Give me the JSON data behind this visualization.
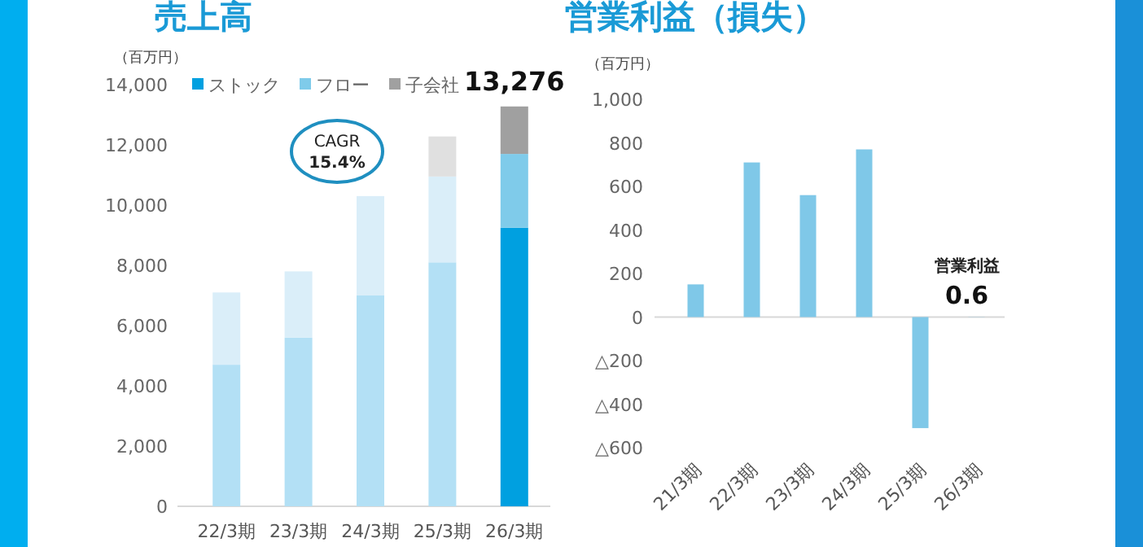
{
  "chart_data": [
    {
      "type": "bar",
      "title": "売上高",
      "ylabel": "（百万円）",
      "stacked": true,
      "legend": "top",
      "categories": [
        "22/3期",
        "23/3期",
        "24/3期",
        "25/3期",
        "26/3期"
      ],
      "series": [
        {
          "name": "ストック",
          "color": "#00a0e0",
          "colors": [
            "#b3e0f5",
            "#b3e0f5",
            "#b3e0f5",
            "#b3e0f5",
            "#00a0e0"
          ],
          "values": [
            4700,
            5600,
            7000,
            8100,
            9250
          ]
        },
        {
          "name": "フロー",
          "color": "#7fcbea",
          "colors": [
            "#daeef9",
            "#daeef9",
            "#daeef9",
            "#daeef9",
            "#7fcbea"
          ],
          "values": [
            2400,
            2200,
            3300,
            2850,
            2450
          ]
        },
        {
          "name": "子会社",
          "color": "#a0a0a0",
          "colors": [
            null,
            null,
            null,
            "#e0e0e0",
            "#a0a0a0"
          ],
          "values": [
            null,
            null,
            null,
            1330,
            1576
          ]
        }
      ],
      "totals": [
        null,
        null,
        null,
        null,
        "13,276"
      ],
      "ylim": [
        0,
        14000
      ],
      "yticks": [
        {
          "value": 0,
          "label": "0"
        },
        {
          "value": 2000,
          "label": "2,000"
        },
        {
          "value": 4000,
          "label": "4,000"
        },
        {
          "value": 6000,
          "label": "6,000"
        },
        {
          "value": 8000,
          "label": "8,000"
        },
        {
          "value": 10000,
          "label": "10,000"
        },
        {
          "value": 12000,
          "label": "12,000"
        },
        {
          "value": 14000,
          "label": "14,000"
        }
      ],
      "annotations": [
        "CAGR",
        "15.4%"
      ]
    },
    {
      "type": "bar",
      "title": "営業利益（損失）",
      "ylabel": "（百万円）",
      "categories": [
        "21/3期",
        "22/3期",
        "23/3期",
        "24/3期",
        "25/3期",
        "26/3期"
      ],
      "series": [
        {
          "color": "#7fc8e8",
          "values": [
            150,
            710,
            560,
            770,
            -510,
            0.6
          ]
        }
      ],
      "value_labels": [
        null,
        null,
        null,
        null,
        null,
        "0.6"
      ],
      "ylim": [
        -600,
        1000
      ],
      "yticks": [
        {
          "value": -600,
          "label": "△600"
        },
        {
          "value": -400,
          "label": "△400"
        },
        {
          "value": -200,
          "label": "△200"
        },
        {
          "value": 0,
          "label": "0"
        },
        {
          "value": 200,
          "label": "200"
        },
        {
          "value": 400,
          "label": "400"
        },
        {
          "value": 600,
          "label": "600"
        },
        {
          "value": 800,
          "label": "800"
        },
        {
          "value": 1000,
          "label": "1,000"
        }
      ],
      "annotations": [
        {
          "text": "営業利益",
          "x": "26/3期",
          "y": 0.6
        }
      ]
    }
  ]
}
